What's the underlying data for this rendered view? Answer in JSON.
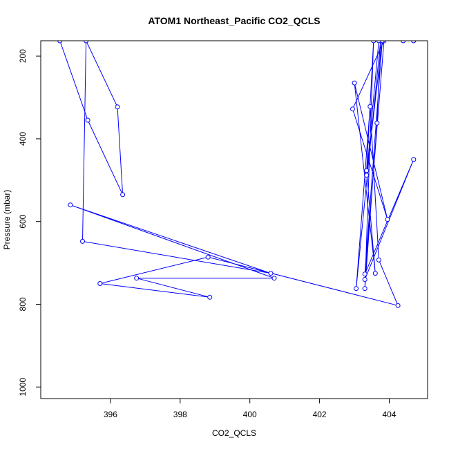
{
  "chart_data": {
    "type": "line",
    "title": "ATOM1 Northeast_Pacific CO2_QCLS",
    "xlabel": "CO2_QCLS",
    "ylabel": "Pressure (mbar)",
    "xlim": [
      394.0,
      405.1
    ],
    "ylim": [
      1028,
      163
    ],
    "y_reversed": true,
    "x_ticks": [
      396,
      398,
      400,
      402,
      404
    ],
    "y_ticks": [
      200,
      400,
      600,
      800,
      1000
    ],
    "grid": false,
    "legend": "none",
    "color": "#0000ff",
    "series": [
      {
        "values": [
          {
            "x": 394.55,
            "y": 163
          },
          {
            "x": 395.35,
            "y": 355
          },
          {
            "x": 396.35,
            "y": 535
          },
          {
            "x": 396.2,
            "y": 323
          },
          {
            "x": 395.3,
            "y": 163
          },
          {
            "x": 395.2,
            "y": 648
          },
          {
            "x": 400.6,
            "y": 725
          },
          {
            "x": 394.85,
            "y": 560
          },
          {
            "x": 400.7,
            "y": 737
          },
          {
            "x": 396.75,
            "y": 737
          },
          {
            "x": 398.85,
            "y": 783
          },
          {
            "x": 395.7,
            "y": 750
          },
          {
            "x": 398.8,
            "y": 686
          },
          {
            "x": 404.25,
            "y": 803
          },
          {
            "x": 403.7,
            "y": 693
          },
          {
            "x": 403.45,
            "y": 322
          },
          {
            "x": 403.05,
            "y": 762
          },
          {
            "x": 403.75,
            "y": 163
          },
          {
            "x": 403.65,
            "y": 362
          },
          {
            "x": 403.3,
            "y": 762
          },
          {
            "x": 403.55,
            "y": 163
          },
          {
            "x": 403.35,
            "y": 477
          },
          {
            "x": 403.6,
            "y": 725
          },
          {
            "x": 403.0,
            "y": 265
          },
          {
            "x": 403.95,
            "y": 595
          },
          {
            "x": 402.95,
            "y": 328
          },
          {
            "x": 403.85,
            "y": 163
          },
          {
            "x": 403.3,
            "y": 740
          },
          {
            "x": 404.7,
            "y": 450
          },
          {
            "x": 403.3,
            "y": 727
          },
          {
            "x": 403.8,
            "y": 163
          },
          {
            "x": 403.35,
            "y": 488
          },
          {
            "x": 403.7,
            "y": 163
          },
          {
            "x": 404.4,
            "y": 163
          },
          {
            "x": 404.7,
            "y": 163
          }
        ]
      }
    ]
  }
}
